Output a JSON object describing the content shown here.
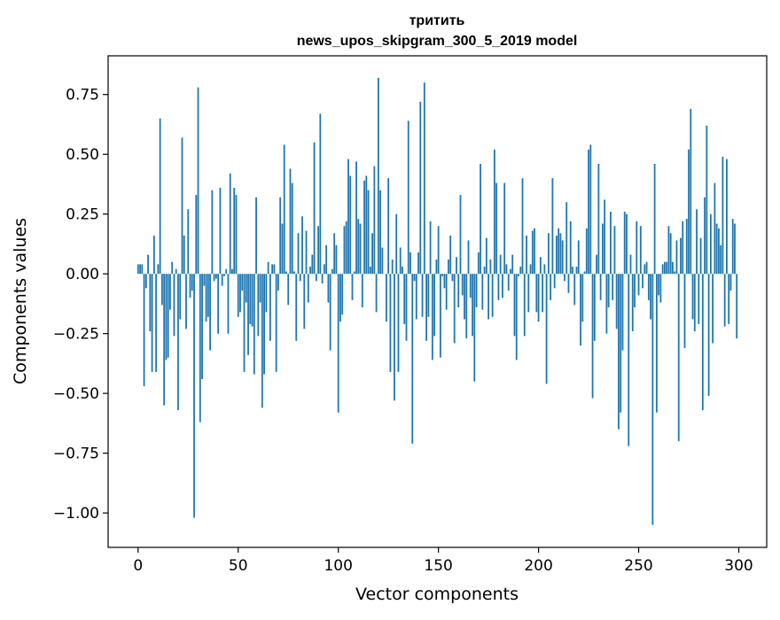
{
  "chart_data": {
    "type": "bar",
    "title": "тритить",
    "subtitle": "news_upos_skipgram_300_5_2019 model",
    "xlabel": "Vector components",
    "ylabel": "Components values",
    "xlim": [
      -14.95,
      313.95
    ],
    "ylim": [
      -1.144,
      0.912
    ],
    "xticks": [
      0,
      50,
      100,
      150,
      200,
      250,
      300
    ],
    "yticks": [
      -1.0,
      -0.75,
      -0.5,
      -0.25,
      0.0,
      0.25,
      0.5,
      0.75
    ],
    "ytick_labels": [
      "−1.00",
      "−0.75",
      "−0.50",
      "−0.25",
      "0.00",
      "0.25",
      "0.50",
      "0.75"
    ],
    "bar_color": "#1f77b4",
    "grid": false,
    "legend": "none",
    "x": [
      0,
      1,
      2,
      3,
      4,
      5,
      6,
      7,
      8,
      9,
      10,
      11,
      12,
      13,
      14,
      15,
      16,
      17,
      18,
      19,
      20,
      21,
      22,
      23,
      24,
      25,
      26,
      27,
      28,
      29,
      30,
      31,
      32,
      33,
      34,
      35,
      36,
      37,
      38,
      39,
      40,
      41,
      42,
      43,
      44,
      45,
      46,
      47,
      48,
      49,
      50,
      51,
      52,
      53,
      54,
      55,
      56,
      57,
      58,
      59,
      60,
      61,
      62,
      63,
      64,
      65,
      66,
      67,
      68,
      69,
      70,
      71,
      72,
      73,
      74,
      75,
      76,
      77,
      78,
      79,
      80,
      81,
      82,
      83,
      84,
      85,
      86,
      87,
      88,
      89,
      90,
      91,
      92,
      93,
      94,
      95,
      96,
      97,
      98,
      99,
      100,
      101,
      102,
      103,
      104,
      105,
      106,
      107,
      108,
      109,
      110,
      111,
      112,
      113,
      114,
      115,
      116,
      117,
      118,
      119,
      120,
      121,
      122,
      123,
      124,
      125,
      126,
      127,
      128,
      129,
      130,
      131,
      132,
      133,
      134,
      135,
      136,
      137,
      138,
      139,
      140,
      141,
      142,
      143,
      144,
      145,
      146,
      147,
      148,
      149,
      150,
      151,
      152,
      153,
      154,
      155,
      156,
      157,
      158,
      159,
      160,
      161,
      162,
      163,
      164,
      165,
      166,
      167,
      168,
      169,
      170,
      171,
      172,
      173,
      174,
      175,
      176,
      177,
      178,
      179,
      180,
      181,
      182,
      183,
      184,
      185,
      186,
      187,
      188,
      189,
      190,
      191,
      192,
      193,
      194,
      195,
      196,
      197,
      198,
      199,
      200,
      201,
      202,
      203,
      204,
      205,
      206,
      207,
      208,
      209,
      210,
      211,
      212,
      213,
      214,
      215,
      216,
      217,
      218,
      219,
      220,
      221,
      222,
      223,
      224,
      225,
      226,
      227,
      228,
      229,
      230,
      231,
      232,
      233,
      234,
      235,
      236,
      237,
      238,
      239,
      240,
      241,
      242,
      243,
      244,
      245,
      246,
      247,
      248,
      249,
      250,
      251,
      252,
      253,
      254,
      255,
      256,
      257,
      258,
      259,
      260,
      261,
      262,
      263,
      264,
      265,
      266,
      267,
      268,
      269,
      270,
      271,
      272,
      273,
      274,
      275,
      276,
      277,
      278,
      279,
      280,
      281,
      282,
      283,
      284,
      285,
      286,
      287,
      288,
      289,
      290,
      291,
      292,
      293,
      294,
      295,
      296,
      297,
      298,
      299
    ],
    "values": [
      0.04,
      0.04,
      0.04,
      -0.47,
      -0.06,
      0.08,
      -0.24,
      -0.41,
      0.16,
      -0.41,
      0.04,
      0.65,
      -0.13,
      -0.55,
      -0.36,
      -0.35,
      -0.15,
      0.05,
      -0.26,
      0.02,
      -0.57,
      -0.19,
      0.57,
      0.16,
      -0.23,
      0.27,
      -0.1,
      -0.07,
      -1.02,
      0.33,
      0.78,
      -0.62,
      -0.44,
      -0.05,
      -0.2,
      -0.18,
      -0.32,
      0.35,
      -0.03,
      -0.02,
      -0.25,
      0.36,
      -0.05,
      -0.01,
      0.02,
      -0.25,
      0.42,
      0.02,
      0.36,
      0.33,
      -0.18,
      -0.16,
      -0.07,
      -0.41,
      -0.12,
      -0.34,
      -0.21,
      -0.22,
      -0.42,
      0.32,
      -0.26,
      -0.12,
      -0.56,
      -0.42,
      -0.16,
      0.05,
      -0.28,
      0.04,
      0.04,
      -0.41,
      -0.07,
      0.32,
      0.21,
      0.54,
      0.01,
      -0.13,
      0.44,
      0.38,
      0.01,
      -0.28,
      0.17,
      -0.03,
      0.24,
      -0.23,
      0.18,
      -0.12,
      0.03,
      0.08,
      0.55,
      -0.03,
      0.2,
      0.67,
      -0.04,
      0.04,
      0.12,
      -0.12,
      -0.32,
      0.02,
      0.17,
      0.12,
      -0.58,
      -0.2,
      -0.17,
      0.2,
      0.22,
      0.48,
      0.41,
      -0.11,
      0.01,
      0.47,
      0.23,
      0.21,
      -0.14,
      0.39,
      0.41,
      0.35,
      0.03,
      0.17,
      0.45,
      -0.16,
      0.82,
      0.35,
      0.11,
      0.0,
      -0.2,
      0.4,
      -0.41,
      0.06,
      -0.53,
      0.25,
      -0.41,
      0.11,
      0.03,
      -0.21,
      -0.28,
      0.64,
      0.09,
      -0.71,
      -0.03,
      -0.19,
      0.09,
      0.72,
      -0.18,
      0.8,
      -0.28,
      -0.18,
      0.22,
      -0.36,
      -0.26,
      0.06,
      0.2,
      -0.35,
      -0.01,
      -0.06,
      -0.15,
      0.06,
      0.16,
      -0.03,
      -0.29,
      0.07,
      -0.14,
      0.33,
      -0.09,
      -0.19,
      -0.27,
      0.14,
      -0.1,
      -0.26,
      -0.45,
      -0.14,
      0.09,
      0.46,
      -0.15,
      0.03,
      0.15,
      -0.19,
      0.06,
      -0.18,
      0.52,
      0.38,
      -0.11,
      0.08,
      -0.1,
      0.38,
      0.04,
      -0.07,
      0.02,
      0.08,
      -0.26,
      -0.36,
      -0.01,
      0.03,
      0.4,
      -0.26,
      0.16,
      -0.16,
      0.04,
      0.18,
      0.19,
      -0.16,
      -0.2,
      0.07,
      -0.16,
      0.04,
      -0.46,
      0.17,
      -0.11,
      0.4,
      -0.06,
      0.16,
      0.19,
      0.17,
      0.14,
      -0.03,
      0.3,
      -0.08,
      0.22,
      0.03,
      -0.13,
      0.03,
      0.14,
      -0.3,
      -0.2,
      0.01,
      0.19,
      0.52,
      0.54,
      -0.52,
      -0.28,
      0.08,
      0.46,
      -0.11,
      0.21,
      0.31,
      -0.25,
      -0.14,
      0.26,
      -0.11,
      0.2,
      -0.23,
      -0.65,
      -0.58,
      -0.32,
      0.26,
      0.25,
      -0.72,
      0.08,
      -0.24,
      -0.14,
      0.22,
      -0.09,
      0.2,
      -0.06,
      0.04,
      0.05,
      -0.11,
      -0.19,
      -1.05,
      0.46,
      -0.58,
      -0.09,
      -0.12,
      0.04,
      0.05,
      0.05,
      0.2,
      0.17,
      0.05,
      0.01,
      0.14,
      -0.7,
      0.15,
      0.22,
      -0.31,
      0.23,
      0.52,
      0.69,
      -0.19,
      -0.24,
      0.27,
      -0.21,
      0.15,
      -0.57,
      0.32,
      0.62,
      -0.51,
      0.25,
      -0.29,
      0.38,
      0.21,
      0.19,
      0.12,
      0.49,
      -0.22,
      0.48,
      -0.21,
      -0.07,
      0.23,
      0.21,
      -0.27
    ]
  }
}
